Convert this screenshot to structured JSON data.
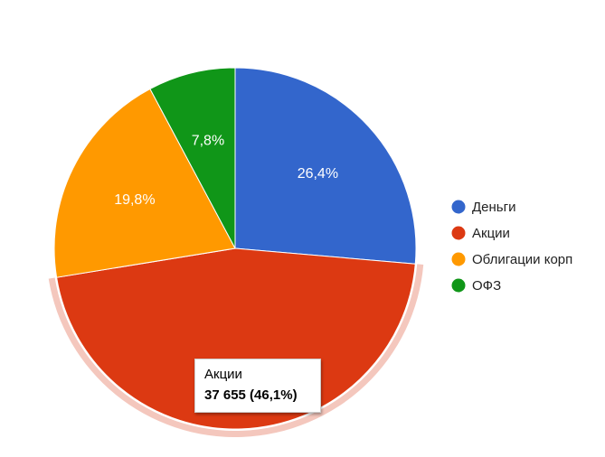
{
  "chart_data": {
    "type": "pie",
    "categories": [
      "Деньги",
      "Акции",
      "Облигации корп",
      "ОФЗ"
    ],
    "values": [
      26.4,
      46.1,
      19.8,
      7.8
    ],
    "slice_labels": [
      "26,4%",
      "",
      "19,8%",
      "7,8%"
    ],
    "colors": [
      "#3366cc",
      "#dc3912",
      "#ff9900",
      "#109618"
    ],
    "highlight_color": "#f4c7bd",
    "highlighted": "Акции",
    "legend_position": "right",
    "legend": [
      {
        "label": "Деньги",
        "color": "#3366cc"
      },
      {
        "label": "Акции",
        "color": "#dc3912"
      },
      {
        "label": "Облигации корп",
        "color": "#ff9900"
      },
      {
        "label": "ОФЗ",
        "color": "#109618"
      }
    ],
    "tooltip": {
      "title": "Акции",
      "value": "37 655 (46,1%)"
    }
  }
}
